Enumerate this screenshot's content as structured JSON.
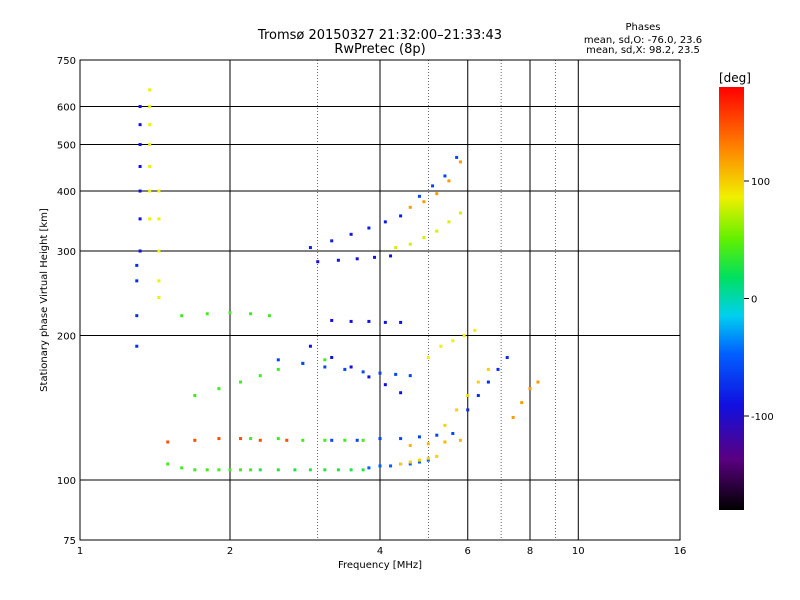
{
  "chart_data": {
    "type": "scatter",
    "title": "Tromsø 20150327 21:32:00–21:33:43",
    "subtitle": "RwPretec (8p)",
    "xlabel": "Frequency [MHz]",
    "ylabel": "Stationary phase Virtual Height [km]",
    "xscale": "log",
    "yscale": "log",
    "xlim": [
      1,
      16
    ],
    "ylim": [
      75,
      750
    ],
    "x_ticks": [
      1,
      2,
      4,
      6,
      8,
      10,
      16
    ],
    "y_ticks": [
      75,
      100,
      200,
      300,
      400,
      500,
      600,
      750
    ],
    "grid": true,
    "stats": {
      "header": "Phases",
      "line1": "mean, sd,O: -76.0, 23.6",
      "line2": "mean, sd,X:  98.2, 23.5"
    },
    "colorbar": {
      "unit": "[deg]",
      "range": [
        -180,
        180
      ],
      "ticks": [
        100,
        0,
        -100
      ],
      "colormap": "rainbow"
    },
    "traces": [
      {
        "f": [
          1.5,
          1.6,
          1.7,
          1.8,
          1.9,
          2.0,
          2.1,
          2.2
        ],
        "h": [
          108,
          106,
          105,
          105,
          105,
          105,
          105,
          105
        ],
        "phase": 20
      },
      {
        "f": [
          2.3,
          2.5,
          2.7,
          2.9,
          3.1,
          3.3,
          3.5,
          3.7
        ],
        "h": [
          105,
          105,
          105,
          105,
          105,
          105,
          105,
          105
        ],
        "phase": 10
      },
      {
        "f": [
          3.8,
          4.0,
          4.2,
          4.4,
          4.6,
          4.8,
          5.0
        ],
        "h": [
          106,
          107,
          107,
          108,
          108,
          109,
          110
        ],
        "phase": -90
      },
      {
        "f": [
          4.4,
          4.6,
          4.8,
          5.0,
          5.2
        ],
        "h": [
          108,
          109,
          110,
          111,
          112
        ],
        "phase": 100
      },
      {
        "f": [
          1.5,
          1.7,
          1.9,
          2.1,
          2.3,
          2.6
        ],
        "h": [
          120,
          121,
          122,
          122,
          121,
          121
        ],
        "phase": 150
      },
      {
        "f": [
          2.2,
          2.5,
          2.8,
          3.1,
          3.4,
          3.7
        ],
        "h": [
          122,
          122,
          121,
          121,
          121,
          121
        ],
        "phase": 20
      },
      {
        "f": [
          3.2,
          3.6,
          4.0,
          4.4,
          4.8,
          5.2,
          5.6
        ],
        "h": [
          121,
          121,
          122,
          122,
          123,
          124,
          125
        ],
        "phase": -100
      },
      {
        "f": [
          4.6,
          5.0,
          5.4,
          5.8
        ],
        "h": [
          118,
          119,
          120,
          121
        ],
        "phase": 110
      },
      {
        "f": [
          1.7,
          1.9,
          2.1,
          2.3,
          2.5,
          2.8,
          3.1
        ],
        "h": [
          150,
          155,
          160,
          165,
          170,
          175,
          178
        ],
        "phase": 20
      },
      {
        "f": [
          2.5,
          2.8,
          3.1,
          3.4,
          3.7,
          4.0,
          4.3,
          4.6
        ],
        "h": [
          178,
          175,
          172,
          170,
          168,
          167,
          166,
          165
        ],
        "phase": -100
      },
      {
        "f": [
          2.9,
          3.2,
          3.5,
          3.8,
          4.1,
          4.4
        ],
        "h": [
          190,
          180,
          172,
          164,
          158,
          152
        ],
        "phase": -120
      },
      {
        "f": [
          1.6,
          1.8,
          2.0,
          2.2,
          2.4
        ],
        "h": [
          220,
          222,
          223,
          222,
          220
        ],
        "phase": 20
      },
      {
        "f": [
          3.2,
          3.5,
          3.8,
          4.1,
          4.4
        ],
        "h": [
          215,
          214,
          214,
          213,
          213
        ],
        "phase": -120
      },
      {
        "f": [
          3.0,
          3.3,
          3.6,
          3.9,
          4.2
        ],
        "h": [
          285,
          287,
          289,
          291,
          293
        ],
        "phase": -120
      },
      {
        "f": [
          2.9,
          3.2,
          3.5,
          3.8,
          4.1,
          4.4
        ],
        "h": [
          305,
          315,
          325,
          335,
          345,
          355
        ],
        "phase": -115
      },
      {
        "f": [
          4.3,
          4.6,
          4.9,
          5.2,
          5.5,
          5.8
        ],
        "h": [
          305,
          310,
          320,
          330,
          345,
          360
        ],
        "phase": 80
      },
      {
        "f": [
          4.6,
          4.9,
          5.2,
          5.5,
          5.8
        ],
        "h": [
          370,
          380,
          395,
          420,
          460
        ],
        "phase": 120
      },
      {
        "f": [
          4.8,
          5.1,
          5.4,
          5.7
        ],
        "h": [
          390,
          410,
          430,
          470
        ],
        "phase": -100
      },
      {
        "f": [
          5.4,
          5.7,
          6.0,
          6.3,
          6.6
        ],
        "h": [
          130,
          140,
          150,
          160,
          170
        ],
        "phase": 100
      },
      {
        "f": [
          6.0,
          6.3,
          6.6,
          6.9,
          7.2
        ],
        "h": [
          140,
          150,
          160,
          170,
          180
        ],
        "phase": -110
      },
      {
        "f": [
          7.4,
          7.7,
          8.0,
          8.3
        ],
        "h": [
          135,
          145,
          155,
          160
        ],
        "phase": 120
      },
      {
        "f": [
          5.0,
          5.3,
          5.6,
          5.9,
          6.2
        ],
        "h": [
          180,
          190,
          195,
          200,
          205
        ],
        "phase": 90
      },
      {
        "f": [
          1.38,
          1.38,
          1.38,
          1.38,
          1.38,
          1.38,
          1.38
        ],
        "h": [
          350,
          400,
          450,
          500,
          550,
          600,
          650
        ],
        "phase": 90
      },
      {
        "f": [
          1.32,
          1.32,
          1.32,
          1.32,
          1.32,
          1.32,
          1.32
        ],
        "h": [
          300,
          350,
          400,
          450,
          500,
          550,
          600
        ],
        "phase": -120
      },
      {
        "f": [
          1.44,
          1.44,
          1.44,
          1.44,
          1.44
        ],
        "h": [
          240,
          260,
          300,
          350,
          400
        ],
        "phase": 90
      },
      {
        "f": [
          1.3,
          1.3,
          1.3,
          1.3
        ],
        "h": [
          190,
          220,
          260,
          280
        ],
        "phase": -110
      }
    ]
  }
}
